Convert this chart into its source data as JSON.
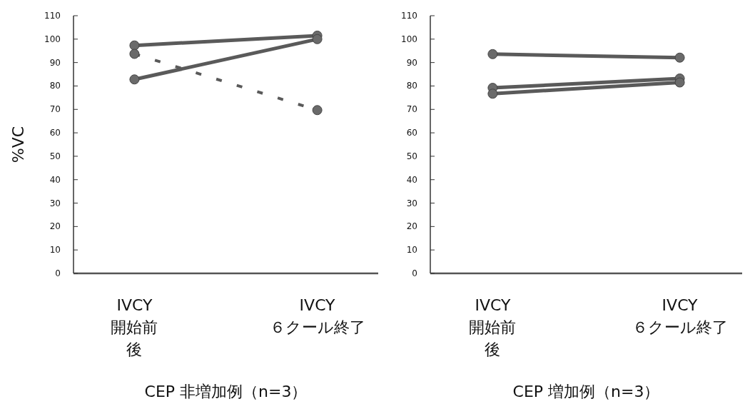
{
  "chart_data": [
    {
      "type": "line",
      "title": "CEP 非増加例（n=3）",
      "ylabel": "%VC",
      "categories": [
        "IVCY\n開始前後",
        "IVCY\n６クール終了"
      ],
      "ylim": [
        0,
        110
      ],
      "yticks": [
        0,
        10,
        20,
        30,
        40,
        50,
        60,
        70,
        80,
        90,
        100,
        110
      ],
      "marker": "circle",
      "series": [
        {
          "color": "#5a5a5a",
          "values": [
            97.3,
            101.5
          ],
          "line_style": "solid"
        },
        {
          "color": "#5a5a5a",
          "values": [
            82.8,
            100
          ],
          "line_style": "solid"
        },
        {
          "color": "#5a5a5a",
          "values": [
            93.7,
            69.7
          ],
          "line_style": "dashed"
        }
      ]
    },
    {
      "type": "line",
      "title": "CEP 増加例（n=3）",
      "categories": [
        "IVCY\n開始前後",
        "IVCY\n６クール終了"
      ],
      "ylim": [
        0,
        110
      ],
      "yticks": [
        0,
        10,
        20,
        30,
        40,
        50,
        60,
        70,
        80,
        90,
        100,
        110
      ],
      "marker": "circle",
      "series": [
        {
          "color": "#5a5a5a",
          "values": [
            93.6,
            92.1
          ],
          "line_style": "solid"
        },
        {
          "color": "#5a5a5a",
          "values": [
            79.2,
            83.2
          ],
          "line_style": "solid"
        },
        {
          "color": "#5a5a5a",
          "values": [
            76.7,
            81.5
          ],
          "line_style": "solid"
        }
      ]
    }
  ]
}
